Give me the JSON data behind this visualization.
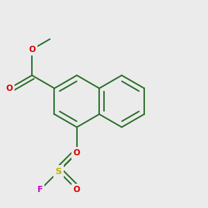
{
  "background_color": "#ebebeb",
  "bond_color": "#2a6e2a",
  "bond_width": 1.5,
  "atom_colors": {
    "O": "#dd0000",
    "S": "#b8b800",
    "F": "#cc00cc",
    "C": "#2a6e2a"
  },
  "font_size": 8.5,
  "fig_width": 3.0,
  "fig_height": 3.0,
  "dpi": 100,
  "BL": 0.165,
  "x8a": 0.62,
  "y8a": 0.6,
  "xlim": [
    0.0,
    1.3
  ],
  "ylim": [
    -0.15,
    1.15
  ]
}
